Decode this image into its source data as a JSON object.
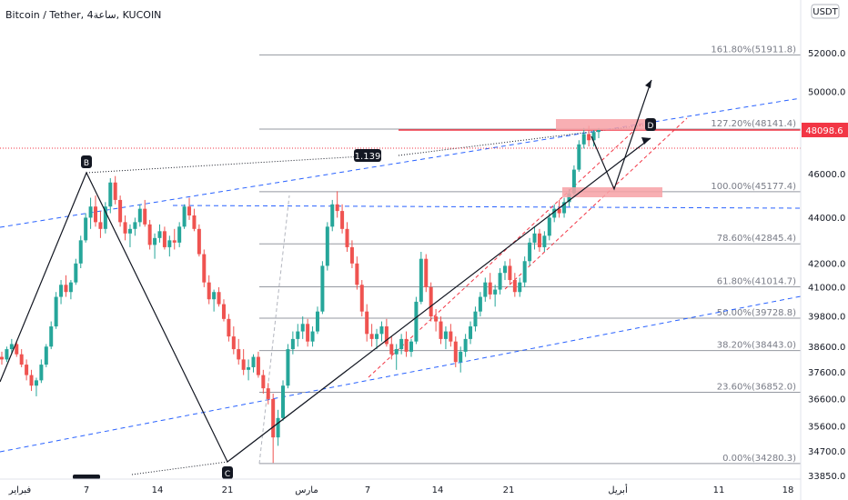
{
  "header": {
    "title": "Bitcoin / Tether, 4ساعة, KUCOIN",
    "currency_badge": "USDT"
  },
  "colors": {
    "up": "#26a69a",
    "down": "#ef5350",
    "fib_line": "#9598a1",
    "trend_blue": "#2962ff",
    "channel_red": "#f23645",
    "price_label_bg": "#f23645",
    "zone_fill": "#f7a1a6"
  },
  "chart_data": {
    "type": "candlestick",
    "symbol": "Bitcoin / Tether",
    "timeframe": "4ساعة",
    "exchange": "KUCOIN",
    "y_axis": {
      "ticks": [
        52000,
        50000,
        48000,
        46000,
        44000,
        42000,
        41000,
        39800,
        38600,
        37600,
        36600,
        35600,
        34700,
        33850
      ],
      "tick_labels": [
        "52000.0",
        "50000.0",
        "48000.0",
        "46000.0",
        "44000.0",
        "42000.0",
        "41000.0",
        "39800.0",
        "38600.0",
        "37600.0",
        "36600.0",
        "35600.0",
        "34700.0",
        "33850.0"
      ],
      "scale": "log"
    },
    "x_axis": {
      "tick_labels": [
        "فبراير",
        "7",
        "14",
        "21",
        "مارس",
        "7",
        "14",
        "21",
        "أبريل",
        "11",
        "18"
      ]
    },
    "last_price_label": "48098.6",
    "last_price": 48098.6,
    "fib_levels": [
      {
        "label": "161.80%(51911.8)",
        "price": 51911.8
      },
      {
        "label": "127.20%(48141.4)",
        "price": 48141.4
      },
      {
        "label": "100.00%(45177.4)",
        "price": 45177.4
      },
      {
        "label": "78.60%(42845.4)",
        "price": 42845.4
      },
      {
        "label": "61.80%(41014.7)",
        "price": 41014.7
      },
      {
        "label": "50.00%(39728.8)",
        "price": 39728.8
      },
      {
        "label": "38.20%(38443.0)",
        "price": 38443.0
      },
      {
        "label": "23.60%(36852.0)",
        "price": 36852.0
      },
      {
        "label": "0.00%(34280.3)",
        "price": 34280.3
      }
    ],
    "pattern_points": [
      {
        "label": "B",
        "price": 46100
      },
      {
        "label": "C",
        "price": 34400
      },
      {
        "label": "D",
        "price": 48150
      }
    ],
    "ratio_label": "1.139",
    "candles": [
      [
        38200,
        38400,
        37900,
        38100
      ],
      [
        38100,
        38600,
        38000,
        38500
      ],
      [
        38500,
        38900,
        38300,
        38700
      ],
      [
        38700,
        38800,
        38200,
        38300
      ],
      [
        38300,
        38500,
        37800,
        37900
      ],
      [
        37900,
        38100,
        37300,
        37500
      ],
      [
        37500,
        37700,
        36900,
        37100
      ],
      [
        37100,
        37400,
        36700,
        37300
      ],
      [
        37300,
        38100,
        37200,
        37900
      ],
      [
        37900,
        38700,
        37800,
        38600
      ],
      [
        38600,
        39600,
        38500,
        39400
      ],
      [
        39400,
        40800,
        39300,
        40600
      ],
      [
        40600,
        41300,
        40300,
        41100
      ],
      [
        41100,
        41500,
        40600,
        40800
      ],
      [
        40800,
        41300,
        40500,
        41200
      ],
      [
        41200,
        42200,
        41100,
        42000
      ],
      [
        42000,
        43200,
        41800,
        43000
      ],
      [
        43000,
        44200,
        42900,
        44000
      ],
      [
        44000,
        44900,
        43500,
        44500
      ],
      [
        44500,
        45000,
        43600,
        43800
      ],
      [
        43800,
        44300,
        43100,
        43500
      ],
      [
        43500,
        44700,
        43300,
        44500
      ],
      [
        44500,
        45800,
        44200,
        45600
      ],
      [
        45600,
        45900,
        44600,
        44800
      ],
      [
        44800,
        45000,
        43600,
        43800
      ],
      [
        43800,
        44100,
        43000,
        43300
      ],
      [
        43300,
        43700,
        42700,
        43500
      ],
      [
        43500,
        44000,
        43200,
        43800
      ],
      [
        43800,
        44600,
        43600,
        44400
      ],
      [
        44400,
        44800,
        43600,
        43700
      ],
      [
        43700,
        43900,
        42600,
        42800
      ],
      [
        42800,
        43300,
        42200,
        43100
      ],
      [
        43100,
        43700,
        42900,
        43400
      ],
      [
        43400,
        43600,
        42600,
        42700
      ],
      [
        42700,
        43200,
        42300,
        43000
      ],
      [
        43000,
        43500,
        42600,
        42900
      ],
      [
        42900,
        43800,
        42700,
        43600
      ],
      [
        43600,
        44600,
        43500,
        44500
      ],
      [
        44500,
        44900,
        43900,
        44100
      ],
      [
        44100,
        44400,
        43400,
        43500
      ],
      [
        43500,
        43700,
        42300,
        42400
      ],
      [
        42400,
        42600,
        41000,
        41200
      ],
      [
        41200,
        41500,
        40300,
        40500
      ],
      [
        40500,
        40900,
        40000,
        40800
      ],
      [
        40800,
        41000,
        40200,
        40300
      ],
      [
        40300,
        40500,
        39600,
        39700
      ],
      [
        39700,
        39900,
        38800,
        39000
      ],
      [
        39000,
        39400,
        38300,
        38500
      ],
      [
        38500,
        38900,
        37900,
        38100
      ],
      [
        38100,
        38500,
        37500,
        37700
      ],
      [
        37700,
        38100,
        37300,
        37800
      ],
      [
        37800,
        38300,
        37600,
        38200
      ],
      [
        38200,
        38400,
        37400,
        37500
      ],
      [
        37500,
        37700,
        36800,
        37000
      ],
      [
        37000,
        37200,
        36400,
        36600
      ],
      [
        36600,
        36800,
        34300,
        35200
      ],
      [
        35200,
        36200,
        34900,
        35900
      ],
      [
        35900,
        37300,
        35800,
        37100
      ],
      [
        37100,
        38700,
        37000,
        38500
      ],
      [
        38500,
        39200,
        38300,
        38900
      ],
      [
        38900,
        39500,
        38600,
        39200
      ],
      [
        39200,
        39800,
        38900,
        39500
      ],
      [
        39500,
        39700,
        38600,
        38800
      ],
      [
        38800,
        39400,
        38600,
        39200
      ],
      [
        39200,
        40200,
        39100,
        40000
      ],
      [
        40000,
        42100,
        39900,
        41900
      ],
      [
        41900,
        43800,
        41700,
        43600
      ],
      [
        43600,
        44800,
        43400,
        44600
      ],
      [
        44600,
        45200,
        44000,
        44300
      ],
      [
        44300,
        44600,
        43300,
        43500
      ],
      [
        43500,
        43800,
        42500,
        42700
      ],
      [
        42700,
        43000,
        41800,
        42000
      ],
      [
        42000,
        42300,
        40900,
        41100
      ],
      [
        41100,
        41300,
        39800,
        40000
      ],
      [
        40000,
        40300,
        38800,
        39100
      ],
      [
        39100,
        39500,
        38600,
        38900
      ],
      [
        38900,
        39300,
        38500,
        39100
      ],
      [
        39100,
        39600,
        38800,
        39400
      ],
      [
        39400,
        39700,
        38600,
        38700
      ],
      [
        38700,
        39000,
        38100,
        38300
      ],
      [
        38300,
        38700,
        37700,
        38500
      ],
      [
        38500,
        39100,
        38300,
        38900
      ],
      [
        38900,
        39200,
        38200,
        38400
      ],
      [
        38400,
        38900,
        38200,
        38800
      ],
      [
        38800,
        40600,
        38700,
        40400
      ],
      [
        40400,
        42500,
        40300,
        42200
      ],
      [
        42200,
        42400,
        40800,
        41000
      ],
      [
        41000,
        41200,
        39600,
        39800
      ],
      [
        39800,
        40100,
        39200,
        39600
      ],
      [
        39600,
        39800,
        38700,
        38900
      ],
      [
        38900,
        39400,
        38500,
        39200
      ],
      [
        39200,
        39500,
        38600,
        38800
      ],
      [
        38800,
        39000,
        37800,
        38000
      ],
      [
        38000,
        38600,
        37600,
        38400
      ],
      [
        38400,
        39100,
        38200,
        38900
      ],
      [
        38900,
        39600,
        38700,
        39400
      ],
      [
        39400,
        40200,
        39200,
        40000
      ],
      [
        40000,
        40800,
        39800,
        40600
      ],
      [
        40600,
        41400,
        40400,
        41200
      ],
      [
        41200,
        41600,
        40500,
        40700
      ],
      [
        40700,
        41100,
        40200,
        40900
      ],
      [
        40900,
        41800,
        40700,
        41600
      ],
      [
        41600,
        42100,
        41300,
        41900
      ],
      [
        41900,
        42200,
        41100,
        41300
      ],
      [
        41300,
        41600,
        40600,
        40800
      ],
      [
        40800,
        41400,
        40600,
        41200
      ],
      [
        41200,
        42300,
        41000,
        42100
      ],
      [
        42100,
        43100,
        41900,
        42900
      ],
      [
        42900,
        43600,
        42600,
        43300
      ],
      [
        43300,
        43500,
        42500,
        42700
      ],
      [
        42700,
        43400,
        42500,
        43200
      ],
      [
        43200,
        44200,
        43000,
        44000
      ],
      [
        44000,
        44600,
        43800,
        44400
      ],
      [
        44400,
        44800,
        44000,
        44200
      ],
      [
        44200,
        44900,
        44000,
        44700
      ],
      [
        44700,
        45300,
        44500,
        45100
      ],
      [
        45100,
        46400,
        45000,
        46200
      ],
      [
        46200,
        47600,
        46100,
        47400
      ],
      [
        47400,
        48200,
        47200,
        47900
      ],
      [
        47900,
        48300,
        47300,
        47600
      ],
      [
        47600,
        48100,
        47300,
        48000
      ],
      [
        48000,
        48200,
        47700,
        48098.6
      ]
    ]
  }
}
